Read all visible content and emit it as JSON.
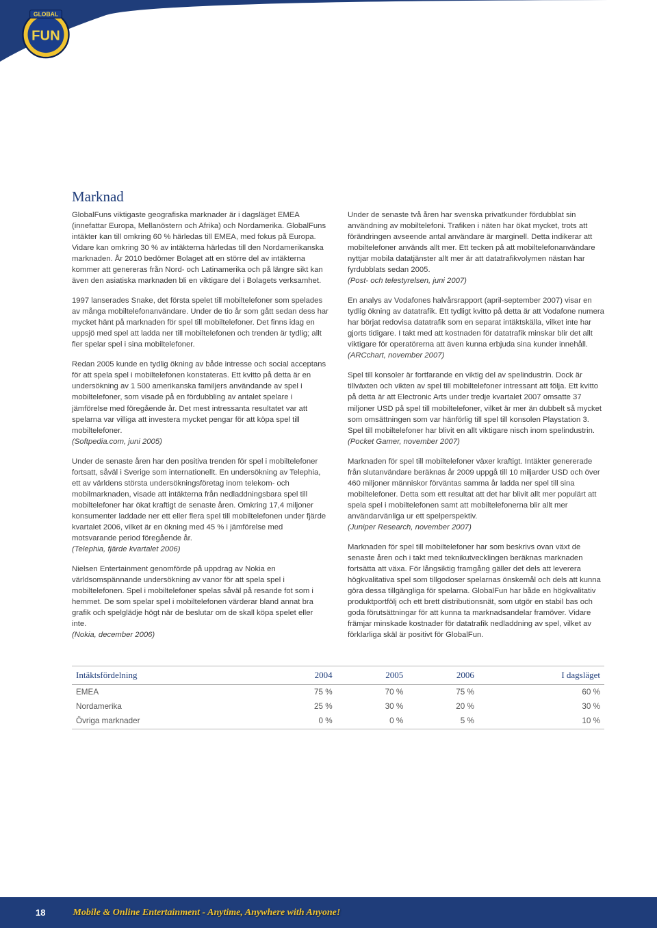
{
  "logo": {
    "word_top": "GLOBAL",
    "word_main": "FUN",
    "outer_fill": "#f0c330",
    "inner_fill": "#1b3e8a",
    "text_fill": "#f2d34a",
    "stroke": "#0a1f52"
  },
  "swoosh": {
    "fill": "#1f3d7a"
  },
  "heading": {
    "text": "Marknad",
    "color": "#1f3d7a"
  },
  "body": {
    "p1": "GlobalFuns viktigaste geografiska marknader är i dagsläget EMEA (innefattar Europa, Mellanöstern och Afrika) och Nordamerika. GlobalFuns intäkter kan till omkring 60 % härledas till EMEA, med fokus på Europa. Vidare kan omkring 30 % av intäkterna härledas till den Nordamerikanska marknaden. År 2010 bedömer Bolaget att en större del av intäkterna kommer att genereras från Nord- och Latinamerika och på längre sikt kan även den asiatiska marknaden bli en viktigare del i Bolagets verksamhet.",
    "p2": "1997 lanserades Snake, det första spelet till mobiltelefoner som spelades av många mobiltelefonanvändare. Under de tio år som gått sedan dess har mycket hänt på marknaden för spel till mobiltelefoner. Det finns idag en uppsjö med spel att ladda ner till mobiltelefonen och trenden är tydlig; allt fler spelar spel i sina mobiltelefoner.",
    "p3": "Redan 2005 kunde en tydlig ökning av både intresse och social acceptans för att spela spel i mobiltelefonen konstateras. Ett kvitto på detta är en undersökning av 1 500 amerikanska familjers användande av spel i mobiltelefoner, som visade på en fördubbling av antalet spelare i jämförelse med föregående år. Det mest intressanta resultatet var att spelarna var villiga att investera mycket pengar för att köpa spel till mobiltelefoner.",
    "p3_src": "(Softpedia.com, juni 2005)",
    "p4": "Under de senaste åren har den positiva trenden för spel i mobiltelefoner fortsatt, såväl i Sverige som internationellt. En undersökning av Telephia, ett av världens största undersöknings­företag inom telekom- och mobilmarknaden, visade att intäkterna från nedladdningsbara spel till mobiltelefoner har ökat kraftigt de senaste åren. Omkring 17,4 miljoner konsumenter laddade ner ett eller flera spel till mobiltelefonen under fjärde kvartalet 2006, vilket är en ökning med 45 % i jämförelse med motsvarande period föregående år.",
    "p4_src": "(Telephia, fjärde kvartalet 2006)",
    "p5": "Nielsen Entertainment genomförde på uppdrag av Nokia en världsomspännande undersökning av vanor för att spela spel i mobiltelefonen. Spel i mobiltelefoner spelas såväl på resande fot som i hemmet. De som spelar spel i mobiltelefonen värderar bland annat bra grafik och spelglädje högt när de beslutar om de skall köpa spelet eller inte.",
    "p5_src": "(Nokia, december 2006)",
    "p6": "Under de senaste två åren har svenska privatkunder fördubblat sin användning av mobiltelefoni. Trafiken i näten har ökat mycket, trots att förändringen avseende antal användare är marginell. Detta indikerar att mobiltelefoner används allt mer. Ett tecken på att mobiltelefonanvändare nyttjar mobila datatjänster allt mer är att datatrafikvolymen nästan har fyrdubblats sedan 2005.",
    "p6_src": "(Post- och telestyrelsen, juni 2007)",
    "p7": "En analys av Vodafones halvårsrapport (april-september 2007) visar en tydlig ökning av datatrafik. Ett tydligt kvitto på detta är att Vodafone numera har börjat redovisa datatrafik som en separat intäktskälla, vilket inte har gjorts tidigare. I takt med att kostnaden för datatrafik minskar blir det allt viktigare för operatörerna att även kunna erbjuda sina kunder innehåll.",
    "p7_src": "(ARCchart, november 2007)",
    "p8": "Spel till konsoler är fortfarande en viktig del av spelindustrin. Dock är tillväxten och vikten av spel till mobiltelefoner intressant att följa. Ett kvitto på detta är att Electronic Arts under tredje kvartalet 2007 omsatte 37 miljoner USD på spel till mobiltelefoner, vilket är mer än dubbelt så mycket som omsättningen som var hänförlig till spel till konsolen Playstation 3. Spel till mobiltelefoner har blivit en allt viktigare nisch inom spelindustrin.",
    "p8_src": "(Pocket Gamer, november 2007)",
    "p9": "Marknaden för spel till mobiltelefoner växer kraftigt. Intäkter genererade från slutanvändare beräknas år 2009 uppgå till 10 miljarder USD och över 460 miljoner människor förväntas samma år ladda ner spel till sina mobiltelefoner. Detta som ett resultat att det har blivit allt mer populärt att spela spel i mobiltelefonen samt att mobiltelefonerna blir allt mer användarvänliga ur ett spelperspektiv.",
    "p9_src": "(Juniper Research, november 2007)",
    "p10": "Marknaden för spel till mobiltelefoner har som beskrivs ovan växt de senaste åren och i takt med teknikutvecklingen beräknas marknaden fortsätta att växa. För långsiktig framgång gäller det dels att leverera högkvalitativa spel som tillgodoser spelarnas önskemål och dels att kunna göra dessa tillgängliga för spelarna. GlobalFun har både en högkvalitativ produktportfölj och ett brett distributionsnät, som utgör en stabil bas och goda förutsättningar för att kunna ta marknadsandelar framöver. Vidare främjar minskade kostnader för datatrafik nedladdning av spel, vilket av förklarliga skäl är positivt för GlobalFun."
  },
  "table": {
    "header_color": "#1f3d7a",
    "columns": [
      "Intäktsfördelning",
      "2004",
      "2005",
      "2006",
      "I dagsläget"
    ],
    "rows": [
      [
        "EMEA",
        "75 %",
        "70 %",
        "75 %",
        "60 %"
      ],
      [
        "Nordamerika",
        "25 %",
        "30 %",
        "20 %",
        "30 %"
      ],
      [
        "Övriga marknader",
        "0 %",
        "0 %",
        "5 %",
        "10 %"
      ]
    ]
  },
  "footer": {
    "page": "18",
    "tagline": "Mobile & Online Entertainment - Anytime, Anywhere with Anyone!",
    "bg": "#1f3d7a",
    "tagline_color": "#f0c330"
  }
}
